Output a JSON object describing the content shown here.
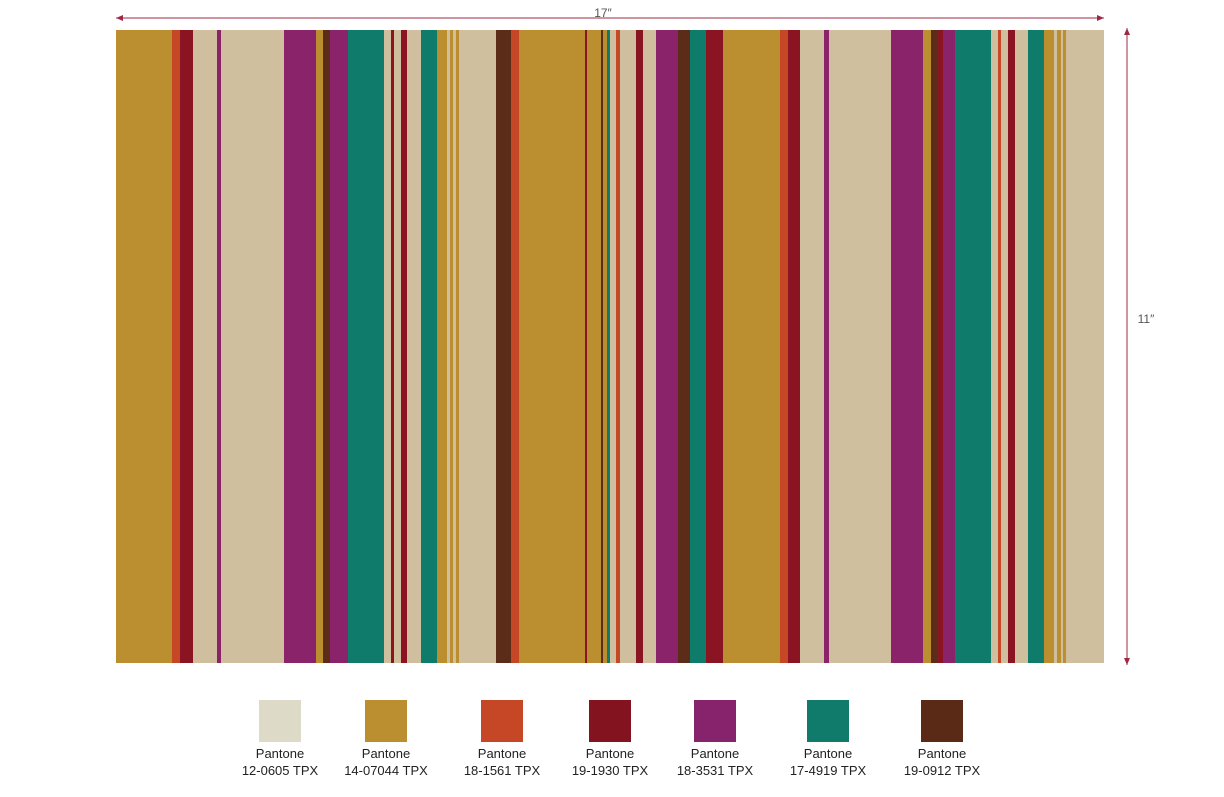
{
  "dimensions": {
    "width": "17″",
    "height": "11″"
  },
  "swatches": [
    {
      "name": "Pantone",
      "code": "12-0605  TPX",
      "color": "#dedac8"
    },
    {
      "name": "Pantone",
      "code": "14-07044 TPX",
      "color": "#bb8e2f"
    },
    {
      "name": "Pantone",
      "code": "18-1561 TPX",
      "color": "#c64726"
    },
    {
      "name": "Pantone",
      "code": "19-1930 TPX",
      "color": "#83131f"
    },
    {
      "name": "Pantone",
      "code": "18-3531 TPX",
      "color": "#87226c"
    },
    {
      "name": "Pantone",
      "code": "17-4919 TPX",
      "color": "#107b6a"
    },
    {
      "name": "Pantone",
      "code": "19-0912 TPX",
      "color": "#5b2a16"
    }
  ]
}
